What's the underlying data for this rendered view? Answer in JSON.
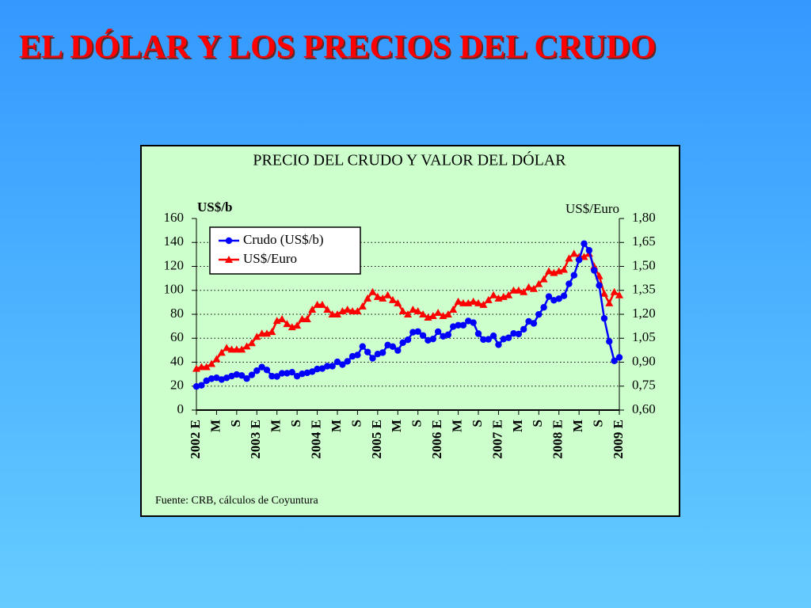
{
  "slide_title": "EL DÓLAR Y LOS PRECIOS DEL CRUDO",
  "chart_data": {
    "type": "line",
    "title": "PRECIO DEL CRUDO Y VALOR DEL DÓLAR",
    "y_label": "US$/b",
    "y2_label": "US$/Euro",
    "source": "Fuente: CRB, cálculos de Coyuntura",
    "grid": true,
    "legend": "top-left",
    "categories": [
      "2002 E",
      null,
      null,
      null,
      "M",
      null,
      null,
      null,
      "S",
      null,
      null,
      null,
      "2003 E",
      null,
      null,
      null,
      "M",
      null,
      null,
      null,
      "S",
      null,
      null,
      null,
      "2004 E",
      null,
      null,
      null,
      "M",
      null,
      null,
      null,
      "S",
      null,
      null,
      null,
      "2005 E",
      null,
      null,
      null,
      "M",
      null,
      null,
      null,
      "S",
      null,
      null,
      null,
      "2006 E",
      null,
      null,
      null,
      "M",
      null,
      null,
      null,
      "S",
      null,
      null,
      null,
      "2007 E",
      null,
      null,
      null,
      "M",
      null,
      null,
      null,
      "S",
      null,
      null,
      null,
      "2008 E",
      null,
      null,
      null,
      "M",
      null,
      null,
      null,
      "S",
      null,
      null,
      null,
      "2009 E"
    ],
    "ylim": [
      0,
      160
    ],
    "yticks": [
      0,
      20,
      40,
      60,
      80,
      100,
      120,
      140,
      160
    ],
    "y2lim": [
      0.6,
      1.8
    ],
    "y2ticks": [
      {
        "value": 0.6,
        "label": "0,60"
      },
      {
        "value": 0.75,
        "label": "0,75"
      },
      {
        "value": 0.9,
        "label": "0,90"
      },
      {
        "value": 1.05,
        "label": "1,05"
      },
      {
        "value": 1.2,
        "label": "1,20"
      },
      {
        "value": 1.35,
        "label": "1,35"
      },
      {
        "value": 1.5,
        "label": "1,50"
      },
      {
        "value": 1.65,
        "label": "1,65"
      },
      {
        "value": 1.8,
        "label": "1,80"
      }
    ],
    "series": [
      {
        "name": "Crudo (US$/b)",
        "color": "#0000ff",
        "marker": "circle",
        "values": [
          19.7,
          20.7,
          24.5,
          26.2,
          27.0,
          25.5,
          26.9,
          28.4,
          29.7,
          28.9,
          26.3,
          29.4,
          32.9,
          35.9,
          33.5,
          28.3,
          28.1,
          30.7,
          30.8,
          31.6,
          28.3,
          30.3,
          31.1,
          32.1,
          34.3,
          34.7,
          36.7,
          36.7,
          40.3,
          38.0,
          40.7,
          44.9,
          46.0,
          53.1,
          48.5,
          43.3,
          46.8,
          48.0,
          54.3,
          53.0,
          49.8,
          56.3,
          58.7,
          65.0,
          65.6,
          62.3,
          58.3,
          59.4,
          65.5,
          61.6,
          62.9,
          69.7,
          70.9,
          70.9,
          74.4,
          73.0,
          63.8,
          58.9,
          59.1,
          62.0,
          54.6,
          59.3,
          60.4,
          64.0,
          63.5,
          67.5,
          74.1,
          72.4,
          79.9,
          85.8,
          94.8,
          91.7,
          93.0,
          95.4,
          105.4,
          112.6,
          125.4,
          139.0,
          133.4,
          116.7,
          104.1,
          76.6,
          57.3,
          41.1,
          44.0
        ]
      },
      {
        "name": "US$/Euro",
        "color": "#ff0000",
        "marker": "triangle",
        "axis": "y2",
        "values": [
          0.86,
          0.87,
          0.87,
          0.89,
          0.92,
          0.96,
          0.99,
          0.98,
          0.98,
          0.98,
          1.0,
          1.02,
          1.06,
          1.08,
          1.08,
          1.09,
          1.16,
          1.17,
          1.14,
          1.12,
          1.13,
          1.17,
          1.17,
          1.23,
          1.26,
          1.26,
          1.23,
          1.2,
          1.2,
          1.22,
          1.23,
          1.22,
          1.22,
          1.25,
          1.3,
          1.34,
          1.31,
          1.3,
          1.32,
          1.29,
          1.27,
          1.22,
          1.2,
          1.23,
          1.22,
          1.2,
          1.18,
          1.19,
          1.21,
          1.19,
          1.2,
          1.23,
          1.28,
          1.27,
          1.27,
          1.28,
          1.27,
          1.26,
          1.29,
          1.32,
          1.3,
          1.31,
          1.32,
          1.35,
          1.35,
          1.34,
          1.37,
          1.36,
          1.39,
          1.42,
          1.47,
          1.46,
          1.47,
          1.48,
          1.55,
          1.58,
          1.56,
          1.56,
          1.58,
          1.5,
          1.44,
          1.33,
          1.27,
          1.34,
          1.32
        ]
      }
    ]
  }
}
